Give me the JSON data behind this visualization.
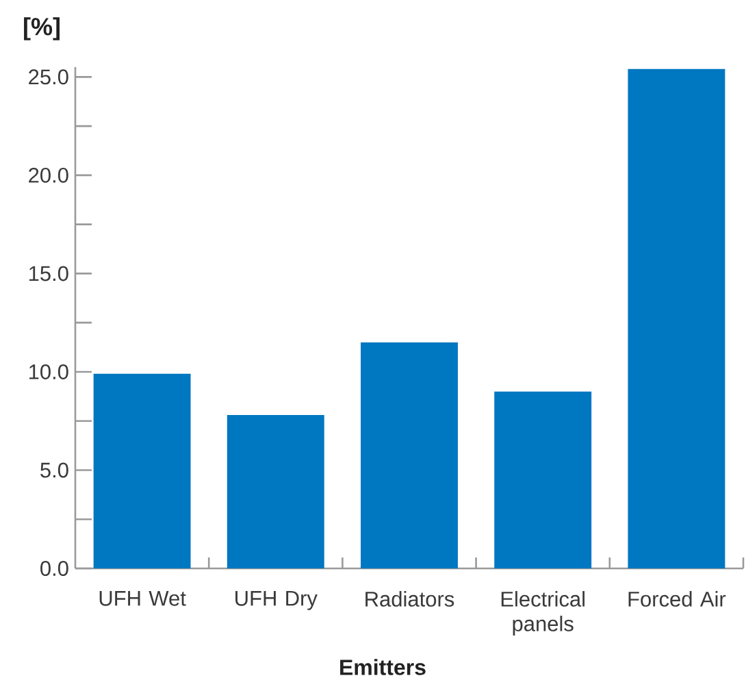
{
  "chart_data": {
    "type": "bar",
    "xlabel": "Emitters",
    "ylabel": "[%]",
    "categories": [
      "UFH Wet",
      "UFH Dry",
      "Radiators",
      "Electrical panels",
      "Forced Air"
    ],
    "values": [
      9.9,
      7.8,
      11.5,
      9.0,
      25.4
    ],
    "color": "#0077c1",
    "ylim": [
      0,
      25.5
    ],
    "yticks": [
      {
        "value": 0,
        "label": "0.0"
      },
      {
        "value": 2.5,
        "label": null
      },
      {
        "value": 5,
        "label": "5.0"
      },
      {
        "value": 7.5,
        "label": null
      },
      {
        "value": 10,
        "label": "10.0"
      },
      {
        "value": 12.5,
        "label": null
      },
      {
        "value": 15,
        "label": "15.0"
      },
      {
        "value": 17.5,
        "label": null
      },
      {
        "value": 20,
        "label": "20.0"
      },
      {
        "value": 22.5,
        "label": null
      },
      {
        "value": 25,
        "label": "25.0"
      }
    ]
  }
}
